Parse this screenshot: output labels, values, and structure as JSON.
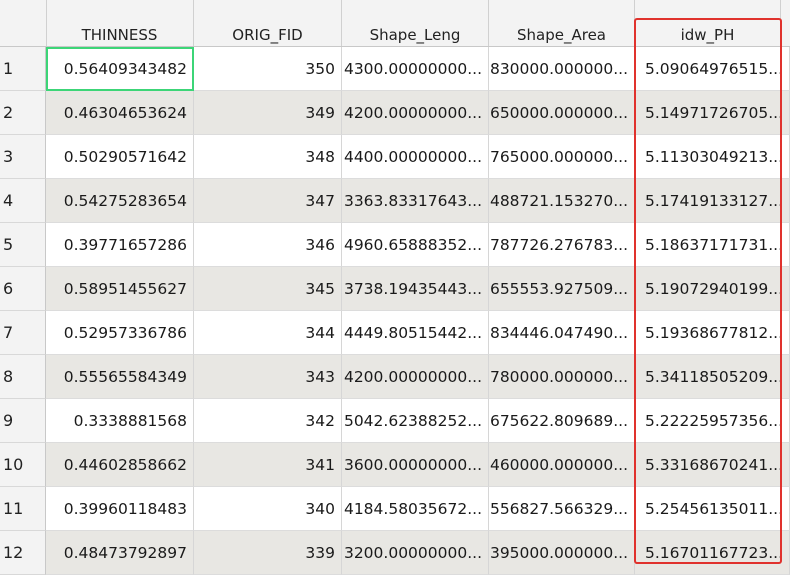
{
  "columns": [
    "THINNESS",
    "ORIG_FID",
    "Shape_Leng",
    "Shape_Area",
    "idw_PH"
  ],
  "rows": [
    {
      "num": "1",
      "cells": [
        "0.56409343482",
        "350",
        "4300.00000000...",
        "830000.000000...",
        "5.09064976515..."
      ]
    },
    {
      "num": "2",
      "cells": [
        "0.46304653624",
        "349",
        "4200.00000000...",
        "650000.000000...",
        "5.14971726705..."
      ]
    },
    {
      "num": "3",
      "cells": [
        "0.50290571642",
        "348",
        "4400.00000000...",
        "765000.000000...",
        "5.11303049213..."
      ]
    },
    {
      "num": "4",
      "cells": [
        "0.54275283654",
        "347",
        "3363.83317643...",
        "488721.153270...",
        "5.17419133127..."
      ]
    },
    {
      "num": "5",
      "cells": [
        "0.39771657286",
        "346",
        "4960.65888352...",
        "787726.276783...",
        "5.18637171731..."
      ]
    },
    {
      "num": "6",
      "cells": [
        "0.58951455627",
        "345",
        "3738.19435443...",
        "655553.927509...",
        "5.19072940199..."
      ]
    },
    {
      "num": "7",
      "cells": [
        "0.52957336786",
        "344",
        "4449.80515442...",
        "834446.047490...",
        "5.19368677812..."
      ]
    },
    {
      "num": "8",
      "cells": [
        "0.55565584349",
        "343",
        "4200.00000000...",
        "780000.000000...",
        "5.34118505209..."
      ]
    },
    {
      "num": "9",
      "cells": [
        "0.3338881568",
        "342",
        "5042.62388252...",
        "675622.809689...",
        "5.22225957356..."
      ]
    },
    {
      "num": "10",
      "cells": [
        "0.44602858662",
        "341",
        "3600.00000000...",
        "460000.000000...",
        "5.33168670241..."
      ]
    },
    {
      "num": "11",
      "cells": [
        "0.39960118483",
        "340",
        "4184.58035672...",
        "556827.566329...",
        "5.25456135011..."
      ]
    },
    {
      "num": "12",
      "cells": [
        "0.48473792897",
        "339",
        "3200.00000000...",
        "395000.000000...",
        "5.16701167723..."
      ]
    }
  ],
  "selection_color": "#3cd577",
  "highlight_color": "#e0322d"
}
